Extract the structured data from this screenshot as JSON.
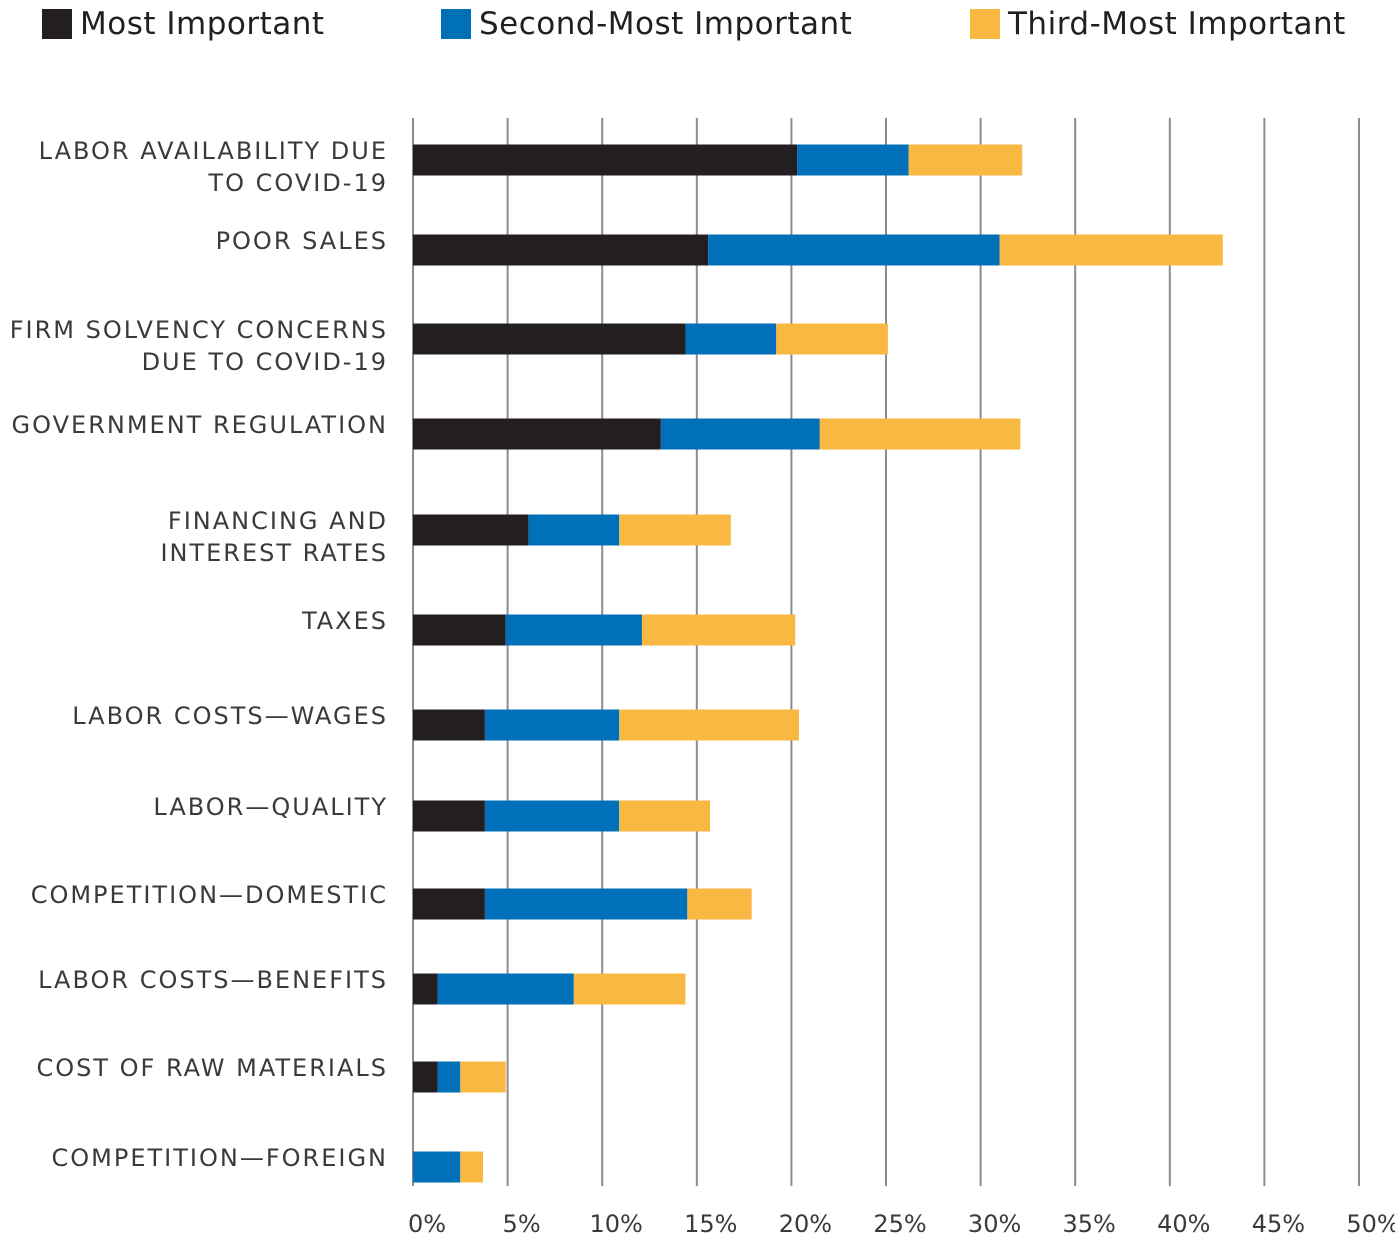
{
  "chart_data": {
    "type": "bar",
    "orientation": "horizontal",
    "stacked": true,
    "title": "",
    "xlabel": "",
    "ylabel": "",
    "xlim": [
      0,
      50
    ],
    "x_ticks": [
      "0%",
      "5%",
      "10%",
      "15%",
      "20%",
      "25%",
      "30%",
      "35%",
      "40%",
      "45%",
      "50%"
    ],
    "grid": "vertical",
    "legend_position": "top",
    "categories": [
      [
        "LABOR AVAILABILITY DUE",
        "TO COVID-19"
      ],
      [
        "POOR SALES"
      ],
      [
        "FIRM SOLVENCY CONCERNS",
        "DUE TO COVID-19"
      ],
      [
        "GOVERNMENT REGULATION"
      ],
      [
        "FINANCING AND",
        "INTEREST RATES"
      ],
      [
        "TAXES"
      ],
      [
        "LABOR COSTS—WAGES"
      ],
      [
        "LABOR—QUALITY"
      ],
      [
        "COMPETITION—DOMESTIC"
      ],
      [
        "LABOR COSTS—BENEFITS"
      ],
      [
        "COST OF RAW MATERIALS"
      ],
      [
        "COMPETITION—FOREIGN"
      ]
    ],
    "series": [
      {
        "name": "Most Important",
        "color": "#231f20",
        "values": [
          20.3,
          15.6,
          14.4,
          13.1,
          6.1,
          4.9,
          3.8,
          3.8,
          3.8,
          1.3,
          1.3,
          0.0
        ]
      },
      {
        "name": "Second-Most Important",
        "color": "#0070b8",
        "values": [
          5.9,
          15.4,
          4.8,
          8.4,
          4.8,
          7.2,
          7.1,
          7.1,
          10.7,
          7.2,
          1.2,
          2.5
        ]
      },
      {
        "name": "Third-Most Important",
        "color": "#f8b841",
        "values": [
          6.0,
          11.8,
          5.9,
          10.6,
          5.9,
          8.1,
          9.5,
          4.8,
          3.4,
          5.9,
          2.4,
          1.2
        ]
      }
    ]
  }
}
